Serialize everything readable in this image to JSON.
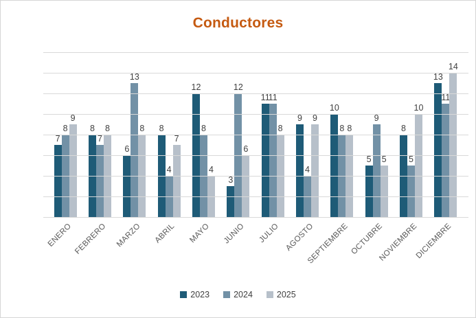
{
  "chart_data": {
    "type": "bar",
    "title": "Conductores",
    "categories": [
      "ENERO",
      "FEBRERO",
      "MARZO",
      "ABRIL",
      "MAYO",
      "JUNIO",
      "JULIO",
      "AGOSTO",
      "SEPTIEMBRE",
      "OCTUBRE",
      "NOVIEMBRE",
      "DICIEMBRE"
    ],
    "series": [
      {
        "name": "2023",
        "color": "#1E5B77",
        "values": [
          7,
          8,
          6,
          8,
          12,
          3,
          11,
          9,
          10,
          5,
          8,
          13
        ]
      },
      {
        "name": "2024",
        "color": "#7291A6",
        "values": [
          8,
          7,
          13,
          4,
          8,
          12,
          11,
          4,
          8,
          9,
          5,
          11
        ]
      },
      {
        "name": "2025",
        "color": "#B7C0CA",
        "values": [
          9,
          8,
          8,
          7,
          4,
          6,
          8,
          9,
          8,
          5,
          10,
          14
        ]
      }
    ],
    "xlabel": "",
    "ylabel": "",
    "ylim": [
      0,
      16
    ],
    "gridline_step": 2,
    "grid": true,
    "y_axis_labels_visible": false,
    "data_labels_visible": true,
    "legend_position": "bottom",
    "colors": {
      "title": "#C55A11",
      "data_label": "#404040",
      "axis_label": "#595959",
      "gridline": "#D9D9D9",
      "legend_text": "#404040",
      "background": "#FFFFFF",
      "border": "#D6D6D6"
    }
  }
}
